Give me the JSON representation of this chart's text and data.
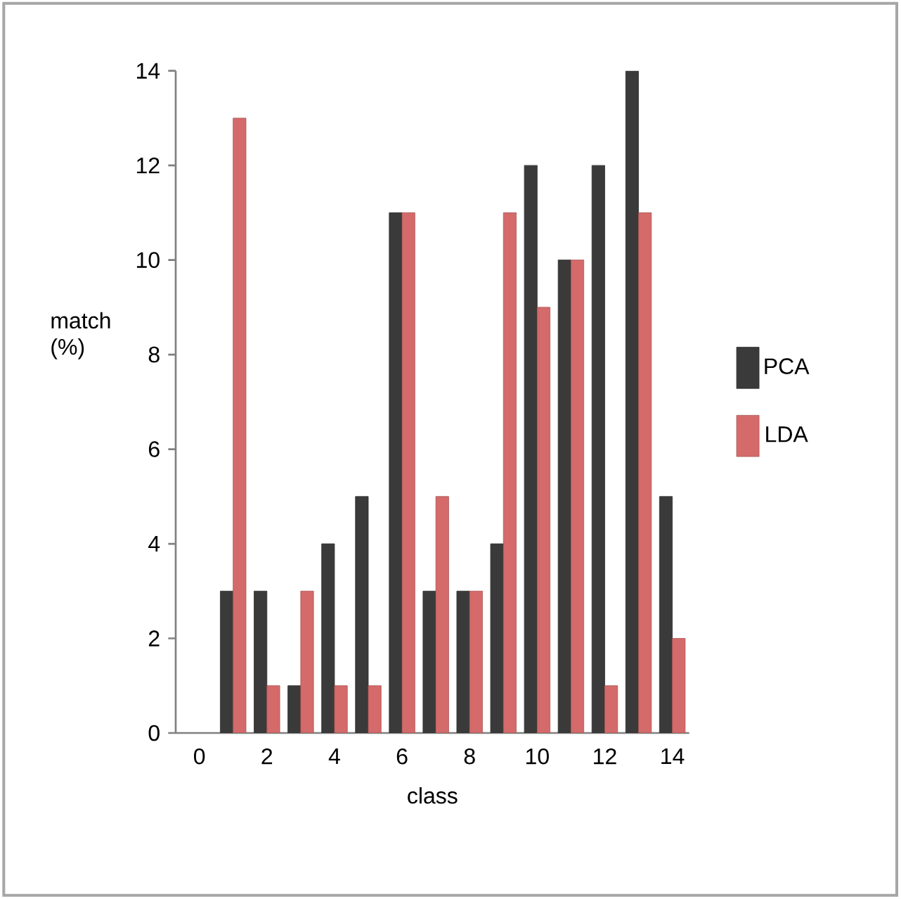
{
  "chart_data": {
    "type": "bar",
    "xlabel": "class",
    "ylabel": "match (%)",
    "x": [
      1,
      2,
      3,
      4,
      5,
      6,
      7,
      8,
      9,
      10,
      11,
      12,
      13,
      14
    ],
    "series": [
      {
        "name": "PCA",
        "color": "#3a3a3a",
        "values": [
          3,
          3,
          1,
          4,
          5,
          11,
          3,
          3,
          4,
          12,
          10,
          12,
          14,
          5
        ]
      },
      {
        "name": "LDA",
        "color": "#d46a6a",
        "values": [
          13,
          1,
          3,
          1,
          1,
          11,
          5,
          3,
          11,
          9,
          10,
          1,
          11,
          2
        ]
      }
    ],
    "xlim": [
      -0.7,
      14.5
    ],
    "xticks": [
      0,
      2,
      4,
      6,
      8,
      10,
      12,
      14
    ],
    "ylim": [
      0,
      14
    ],
    "yticks": [
      0,
      2,
      4,
      6,
      8,
      10,
      12,
      14
    ],
    "grid": false,
    "legend": "right"
  }
}
